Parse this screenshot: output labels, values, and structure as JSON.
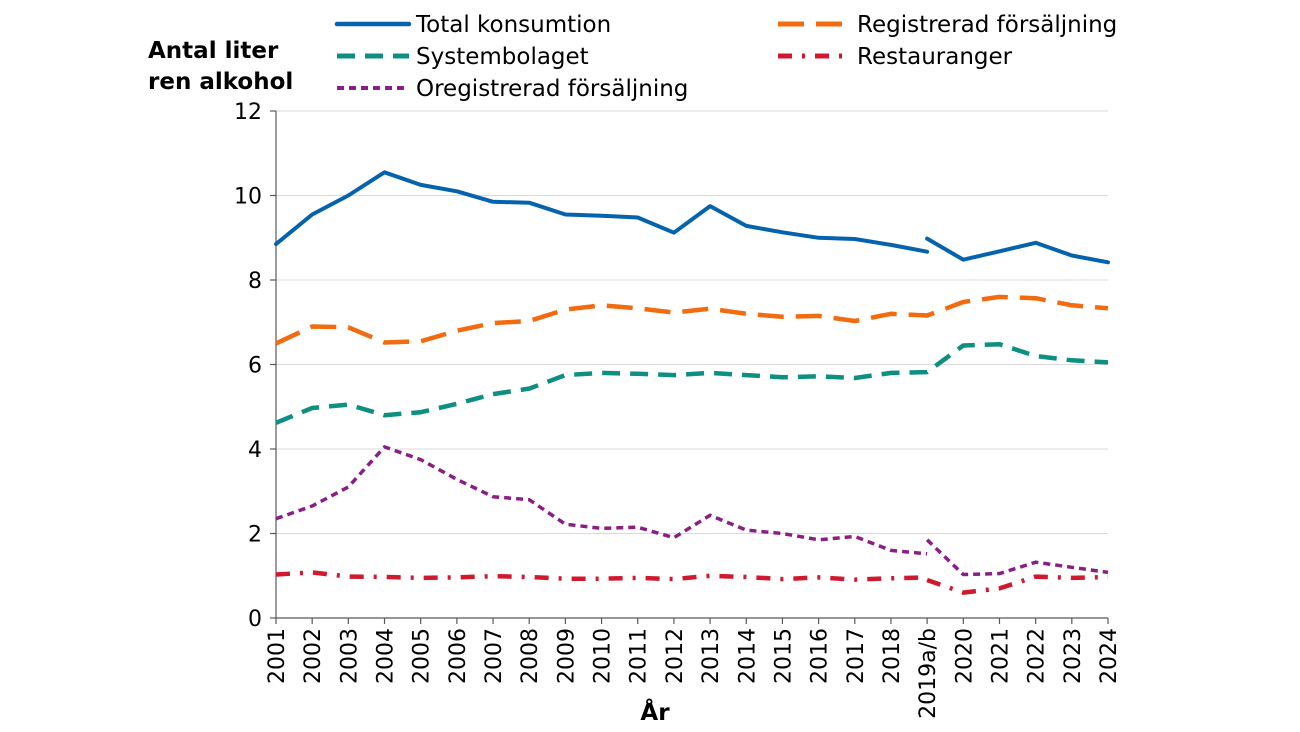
{
  "chart_data": {
    "type": "line",
    "ylabel_lines": [
      "Antal liter",
      "ren alkohol"
    ],
    "xlabel": "År",
    "ylim": [
      0,
      12
    ],
    "yticks": [
      0,
      2,
      4,
      6,
      8,
      10,
      12
    ],
    "grid": true,
    "legend_position": "top",
    "categories": [
      "2001",
      "2002",
      "2003",
      "2004",
      "2005",
      "2006",
      "2007",
      "2008",
      "2009",
      "2010",
      "2011",
      "2012",
      "2013",
      "2014",
      "2015",
      "2016",
      "2017",
      "2018",
      "2019a/b",
      "2020",
      "2021",
      "2022",
      "2023",
      "2024"
    ],
    "series": [
      {
        "name": "Total konsumtion",
        "color": "#0563ad",
        "dash": "solid",
        "segments": [
          {
            "start": 0,
            "values": [
              8.85,
              9.55,
              10.0,
              10.55,
              10.25,
              10.1,
              9.85,
              9.83,
              9.55,
              9.52,
              9.48,
              9.12,
              9.75,
              9.28,
              9.13,
              9.0,
              8.97,
              8.83,
              8.67
            ]
          },
          {
            "start": 18,
            "values": [
              8.98,
              8.48,
              8.68,
              8.88,
              8.58,
              8.42
            ]
          }
        ]
      },
      {
        "name": "Registrerad försäljning",
        "color": "#f26b0f",
        "dash": "longdash",
        "segments": [
          {
            "start": 0,
            "values": [
              6.5,
              6.9,
              6.88,
              6.52,
              6.55,
              6.8,
              6.98,
              7.03,
              7.3,
              7.4,
              7.33,
              7.23,
              7.32,
              7.2,
              7.13,
              7.15,
              7.03,
              7.2,
              7.16,
              7.48,
              7.6,
              7.57,
              7.4,
              7.33
            ]
          }
        ]
      },
      {
        "name": "Systembolaget",
        "color": "#0d9081",
        "dash": "dash",
        "segments": [
          {
            "start": 0,
            "values": [
              4.62,
              4.97,
              5.05,
              4.8,
              4.87,
              5.07,
              5.3,
              5.43,
              5.75,
              5.8,
              5.78,
              5.75,
              5.8,
              5.75,
              5.7,
              5.72,
              5.68,
              5.8,
              5.82,
              6.45,
              6.48,
              6.2,
              6.1,
              6.05
            ]
          }
        ]
      },
      {
        "name": "Restauranger",
        "color": "#d0192e",
        "dash": "dashdot",
        "segments": [
          {
            "start": 0,
            "values": [
              1.03,
              1.08,
              0.98,
              0.97,
              0.95,
              0.96,
              0.99,
              0.97,
              0.93,
              0.93,
              0.95,
              0.92,
              1.0,
              0.97,
              0.92,
              0.96,
              0.91,
              0.94,
              0.96
            ]
          },
          {
            "start": 18,
            "values": [
              0.9,
              0.6,
              0.7,
              0.98,
              0.95,
              0.97
            ]
          }
        ]
      },
      {
        "name": "Oregistrerad försäljning",
        "color": "#8b1e85",
        "dash": "shortdash",
        "segments": [
          {
            "start": 0,
            "values": [
              2.35,
              2.65,
              3.1,
              4.05,
              3.75,
              3.28,
              2.87,
              2.8,
              2.22,
              2.12,
              2.15,
              1.9,
              2.43,
              2.08,
              2.0,
              1.85,
              1.93,
              1.6,
              1.52
            ]
          },
          {
            "start": 18,
            "values": [
              1.85,
              1.03,
              1.05,
              1.32,
              1.2,
              1.08
            ]
          }
        ]
      }
    ]
  }
}
